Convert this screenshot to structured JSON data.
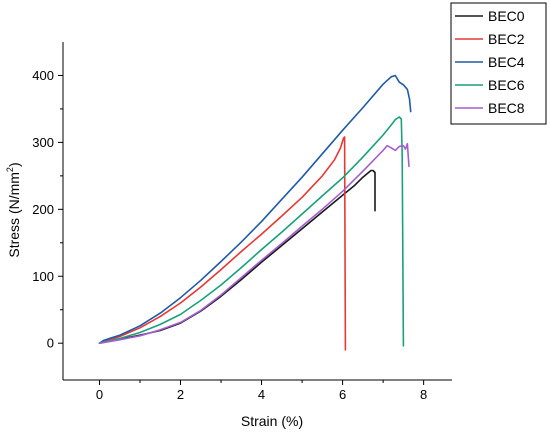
{
  "chart_data": {
    "type": "line",
    "xlabel": "Strain (%)",
    "ylabel_main": "Stress (N/mm",
    "ylabel_sup": "2",
    "ylabel_tail": ")",
    "xlim": [
      -0.9,
      8.7
    ],
    "ylim": [
      -55,
      450
    ],
    "xticks": [
      0,
      2,
      4,
      6,
      8
    ],
    "yticks": [
      0,
      100,
      200,
      300,
      400
    ],
    "grid": false,
    "legend_position": "top-right",
    "series": [
      {
        "name": "BEC0",
        "color": "#1a1a1a",
        "x": [
          0,
          0.5,
          1.0,
          1.5,
          2.0,
          2.5,
          3.0,
          3.5,
          4.0,
          4.5,
          5.0,
          5.5,
          6.0,
          6.3,
          6.5,
          6.6,
          6.7,
          6.75,
          6.8,
          6.8
        ],
        "y": [
          0,
          6,
          12,
          19,
          30,
          48,
          70,
          95,
          121,
          146,
          171,
          196,
          221,
          236,
          248,
          253,
          258,
          258,
          255,
          198
        ]
      },
      {
        "name": "BEC2",
        "color": "#e53935",
        "x": [
          0,
          0.5,
          1.0,
          1.5,
          2.0,
          2.5,
          3.0,
          3.5,
          4.0,
          4.5,
          5.0,
          5.5,
          5.8,
          5.95,
          6.02,
          6.05,
          6.06,
          6.07
        ],
        "y": [
          0,
          10,
          23,
          40,
          60,
          84,
          110,
          137,
          163,
          190,
          218,
          250,
          274,
          292,
          306,
          308,
          150,
          -10
        ]
      },
      {
        "name": "BEC4",
        "color": "#1f5aa6",
        "x": [
          0,
          0.1,
          0.3,
          0.5,
          1.0,
          1.5,
          2.0,
          2.5,
          3.0,
          3.5,
          4.0,
          4.5,
          5.0,
          5.5,
          6.0,
          6.5,
          7.0,
          7.2,
          7.3,
          7.4,
          7.5,
          7.6,
          7.65,
          7.68
        ],
        "y": [
          0,
          4,
          8,
          12,
          26,
          45,
          68,
          94,
          122,
          151,
          182,
          215,
          248,
          283,
          318,
          352,
          387,
          398,
          400,
          390,
          386,
          379,
          365,
          346
        ]
      },
      {
        "name": "BEC6",
        "color": "#1aa07a",
        "x": [
          0,
          0.5,
          1.0,
          1.5,
          2.0,
          2.5,
          3.0,
          3.5,
          4.0,
          4.5,
          5.0,
          5.5,
          6.0,
          6.5,
          7.0,
          7.2,
          7.3,
          7.4,
          7.45,
          7.47,
          7.5
        ],
        "y": [
          0,
          7,
          16,
          28,
          43,
          64,
          87,
          113,
          140,
          166,
          193,
          220,
          247,
          278,
          311,
          326,
          334,
          338,
          335,
          280,
          -4
        ]
      },
      {
        "name": "BEC8",
        "color": "#a45ed1",
        "x": [
          0,
          0.5,
          1.0,
          1.5,
          2.0,
          2.5,
          3.0,
          3.5,
          4.0,
          4.5,
          5.0,
          5.5,
          6.0,
          6.5,
          7.0,
          7.1,
          7.2,
          7.3,
          7.4,
          7.5,
          7.55,
          7.6,
          7.62,
          7.64
        ],
        "y": [
          0,
          5,
          11,
          20,
          31,
          49,
          72,
          98,
          124,
          149,
          175,
          200,
          227,
          257,
          288,
          295,
          292,
          288,
          294,
          295,
          290,
          298,
          280,
          264
        ]
      }
    ]
  }
}
